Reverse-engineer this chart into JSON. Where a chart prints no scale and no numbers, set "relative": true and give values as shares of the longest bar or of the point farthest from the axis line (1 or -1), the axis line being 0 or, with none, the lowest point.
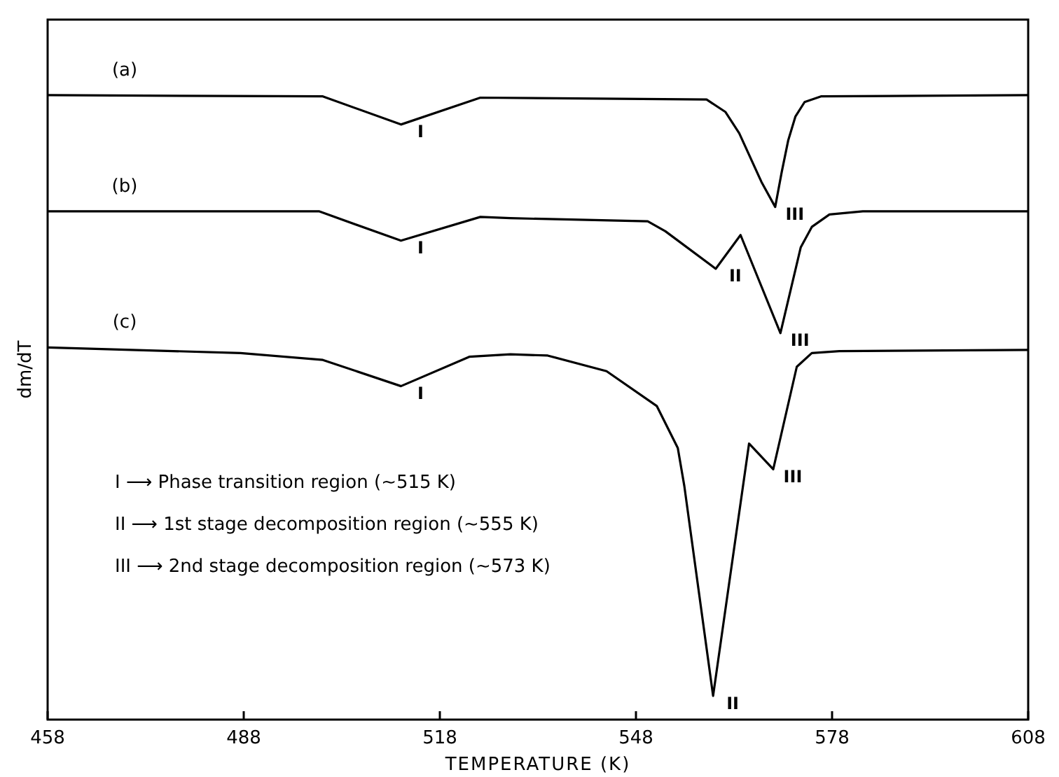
{
  "chart_data": {
    "type": "line",
    "relative": true,
    "xlabel": "TEMPERATURE (K)",
    "ylabel": "dm/dT",
    "xlim": [
      458,
      608
    ],
    "xticks": [
      458,
      488,
      518,
      548,
      578,
      608
    ],
    "grid": false,
    "marker": "none",
    "line_style": "solid",
    "series": [
      {
        "name": "(a)",
        "color": "#000000",
        "x": [
          458,
          500.1,
          512.05,
          524.2,
          558.8,
          561.7,
          563.8,
          567.2,
          569.3,
          570.3,
          571.3,
          572.4,
          573.8,
          576.3,
          608
        ],
        "values": [
          1.0,
          0.998,
          0.953,
          0.996,
          0.993,
          0.973,
          0.939,
          0.861,
          0.821,
          0.877,
          0.928,
          0.966,
          0.989,
          0.998,
          1.0
        ]
      },
      {
        "name": "(b)",
        "color": "#000000",
        "x": [
          458,
          499.5,
          512.05,
          524.2,
          528.8,
          549.8,
          552.5,
          560.2,
          564.0,
          570.1,
          573.2,
          574.9,
          577.6,
          582.7,
          608
        ],
        "values": [
          0.814,
          0.814,
          0.767,
          0.805,
          0.803,
          0.798,
          0.782,
          0.722,
          0.776,
          0.619,
          0.756,
          0.789,
          0.809,
          0.814,
          0.814
        ]
      },
      {
        "name": "(c)",
        "color": "#000000",
        "x": [
          458,
          487.5,
          500.1,
          512.05,
          522.5,
          528.8,
          534.5,
          543.5,
          551.2,
          554.4,
          555.4,
          559.8,
          565.3,
          569.0,
          572.6,
          574.9,
          579.1,
          608
        ],
        "values": [
          0.596,
          0.587,
          0.576,
          0.534,
          0.581,
          0.585,
          0.583,
          0.558,
          0.502,
          0.435,
          0.374,
          0.038,
          0.442,
          0.401,
          0.565,
          0.587,
          0.59,
          0.592
        ]
      }
    ],
    "annotations": [
      {
        "text": "I",
        "x": 512.05,
        "y": 0.953
      },
      {
        "text": "III",
        "x": 569.3,
        "y": 0.821
      },
      {
        "text": "I",
        "x": 512.05,
        "y": 0.767
      },
      {
        "text": "II",
        "x": 560.2,
        "y": 0.722
      },
      {
        "text": "III",
        "x": 570.1,
        "y": 0.619
      },
      {
        "text": "I",
        "x": 512.05,
        "y": 0.534
      },
      {
        "text": "II",
        "x": 559.8,
        "y": 0.038
      },
      {
        "text": "III",
        "x": 569.0,
        "y": 0.401
      },
      "I ⟶ Phase transition region (~515 K)",
      "II ⟶ 1st stage decomposition region (~555 K)",
      "III ⟶ 2nd stage decomposition region (~573 K)"
    ]
  }
}
